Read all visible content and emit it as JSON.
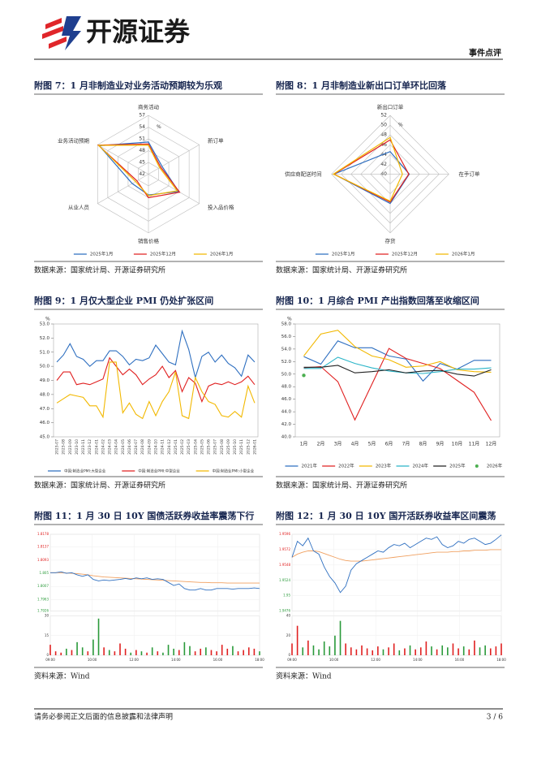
{
  "header": {
    "brand": "开源证券",
    "tag": "事件点评"
  },
  "figures": [
    {
      "title": "附图 7：1 月非制造业对业务活动预期较为乐观",
      "source": "数据来源：国家统计局、开源证券研究所",
      "chart_data": {
        "type": "radar",
        "unit": "%",
        "categories": [
          "商务活动",
          "新订单",
          "投入品价格",
          "销售价格",
          "从业人员",
          "业务活动预期"
        ],
        "rlim": [
          42,
          57
        ],
        "rticks": [
          42,
          45,
          48,
          51,
          54,
          57
        ],
        "series": [
          {
            "name": "2025年1月",
            "color": "#2e6fc0",
            "values": [
              50.2,
              46.0,
              50.9,
              47.3,
              46.8,
              56.5
            ]
          },
          {
            "name": "2025年12月",
            "color": "#e02020",
            "values": [
              49.7,
              45.6,
              51.2,
              48.0,
              45.4,
              56.8
            ]
          },
          {
            "name": "2026年1月",
            "color": "#f2b800",
            "values": [
              49.4,
              45.3,
              50.5,
              47.5,
              45.8,
              56.7
            ]
          }
        ]
      }
    },
    {
      "title": "附图 8：1 月非制造业新出口订单环比回落",
      "source": "数据来源：国家统计局、开源证券研究所",
      "chart_data": {
        "type": "radar",
        "unit": "%",
        "categories": [
          "新出口订单",
          "在手订单",
          "存货",
          "供应商配送时间"
        ],
        "rlim": [
          40,
          52
        ],
        "rticks": [
          40,
          42,
          44,
          46,
          48,
          50,
          52
        ],
        "series": [
          {
            "name": "2025年1月",
            "color": "#2e6fc0",
            "values": [
              44.6,
              43.9,
              46.0,
              51.5
            ]
          },
          {
            "name": "2025年12月",
            "color": "#e02020",
            "values": [
              47.0,
              43.8,
              45.7,
              51.5
            ]
          },
          {
            "name": "2026年1月",
            "color": "#f2b800",
            "values": [
              47.5,
              42.5,
              45.5,
              51.6
            ]
          }
        ]
      }
    },
    {
      "title": "附图 9：1 月仅大型企业 PMI 仍处扩张区间",
      "source": "数据来源：国家统计局、开源证券研究所",
      "chart_data": {
        "type": "line",
        "unit": "%",
        "categories": [
          "2023-07",
          "2023-08",
          "2023-09",
          "2023-10",
          "2023-11",
          "2023-12",
          "2024-01",
          "2024-02",
          "2024-03",
          "2024-04",
          "2024-05",
          "2024-06",
          "2024-07",
          "2024-08",
          "2024-09",
          "2024-10",
          "2024-11",
          "2024-12",
          "2025-01",
          "2025-02",
          "2025-03",
          "2025-04",
          "2025-05",
          "2025-06",
          "2025-07",
          "2025-08",
          "2025-09",
          "2025-10",
          "2025-11",
          "2025-12",
          "2026-01"
        ],
        "ylim": [
          45,
          53
        ],
        "yticks": [
          {
            "value": 45,
            "label": "45.0"
          },
          {
            "value": 46,
            "label": "46.0"
          },
          {
            "value": 47,
            "label": "47.0"
          },
          {
            "value": 48,
            "label": "48.0"
          },
          {
            "value": 49,
            "label": "49.0"
          },
          {
            "value": 50,
            "label": "50.0"
          },
          {
            "value": 51,
            "label": "51.0"
          },
          {
            "value": 52,
            "label": "52.0"
          },
          {
            "value": 53,
            "label": "53.0"
          }
        ],
        "series": [
          {
            "name": "中国:制造业PMI:大型企业",
            "color": "#2e6fc0",
            "values": [
              50.3,
              50.8,
              51.6,
              50.7,
              50.5,
              50.0,
              50.4,
              50.4,
              51.1,
              51.1,
              50.7,
              50.1,
              50.5,
              50.4,
              50.6,
              51.5,
              50.9,
              50.3,
              50.1,
              52.5,
              51.2,
              49.2,
              50.7,
              51.0,
              50.3,
              50.8,
              50.2,
              49.9,
              49.3,
              50.8,
              50.3
            ]
          },
          {
            "name": "中国:制造业PMI:中型企业",
            "color": "#e02020",
            "values": [
              49.0,
              49.6,
              49.6,
              48.7,
              48.8,
              48.7,
              48.9,
              49.1,
              50.6,
              50.0,
              49.4,
              49.8,
              49.4,
              48.7,
              49.1,
              49.4,
              50.0,
              49.2,
              49.7,
              48.2,
              49.2,
              48.8,
              47.5,
              48.6,
              48.8,
              48.7,
              48.9,
              48.7,
              48.9,
              49.3,
              48.7
            ]
          },
          {
            "name": "中国:制造业PMI:小型企业",
            "color": "#f2b800",
            "values": [
              47.4,
              47.7,
              48.0,
              47.9,
              47.8,
              47.2,
              47.2,
              46.4,
              50.3,
              50.3,
              46.7,
              47.4,
              46.6,
              46.3,
              47.5,
              46.5,
              47.5,
              48.2,
              49.6,
              46.5,
              46.3,
              49.2,
              48.2,
              47.5,
              47.3,
              46.5,
              46.4,
              46.8,
              46.4,
              48.6,
              47.4
            ]
          }
        ]
      }
    },
    {
      "title": "附图 10：1 月综合 PMI 产出指数回落至收缩区间",
      "source": "数据来源：国家统计局、开源证券研究所",
      "chart_data": {
        "type": "line",
        "unit": "%",
        "categories": [
          "1月",
          "2月",
          "3月",
          "4月",
          "5月",
          "6月",
          "7月",
          "8月",
          "9月",
          "10月",
          "11月",
          "12月"
        ],
        "ylim": [
          40,
          58
        ],
        "yticks": [
          {
            "value": 40,
            "label": "40.0"
          },
          {
            "value": 42,
            "label": "42.0"
          },
          {
            "value": 44,
            "label": "44.0"
          },
          {
            "value": 46,
            "label": "46.0"
          },
          {
            "value": 48,
            "label": "48.0"
          },
          {
            "value": 50,
            "label": "50.0"
          },
          {
            "value": 52,
            "label": "52.0"
          },
          {
            "value": 54,
            "label": "54.0"
          },
          {
            "value": 56,
            "label": "56.0"
          },
          {
            "value": 58,
            "label": "58.0"
          }
        ],
        "series": [
          {
            "name": "2021年",
            "color": "#2e6fc0",
            "values": [
              52.8,
              51.6,
              55.3,
              54.2,
              54.2,
              52.9,
              52.4,
              48.9,
              51.7,
              50.8,
              52.2,
              52.2
            ]
          },
          {
            "name": "2022年",
            "color": "#e02020",
            "values": [
              51.0,
              51.2,
              48.8,
              42.7,
              48.4,
              54.1,
              52.5,
              51.7,
              50.9,
              49.0,
              47.1,
              42.6
            ]
          },
          {
            "name": "2023年",
            "color": "#f2b800",
            "values": [
              52.9,
              56.4,
              57.0,
              54.4,
              52.9,
              52.3,
              51.1,
              51.3,
              52.0,
              50.7,
              50.4,
              50.3
            ]
          },
          {
            "name": "2024年",
            "color": "#2bb5c8",
            "values": [
              50.9,
              50.9,
              52.7,
              51.7,
              51.0,
              50.5,
              50.2,
              50.1,
              50.4,
              50.8,
              50.8,
              51.0
            ]
          },
          {
            "name": "2025年",
            "color": "#222222",
            "values": [
              51.1,
              51.1,
              51.4,
              50.2,
              50.4,
              50.7,
              50.2,
              50.5,
              50.6,
              50.0,
              49.7,
              50.7
            ]
          },
          {
            "name": "2026年",
            "color": "#4caf50",
            "values": [
              49.8,
              null,
              null,
              null,
              null,
              null,
              null,
              null,
              null,
              null,
              null,
              null
            ]
          }
        ]
      }
    },
    {
      "title": "附图 11：1 月 30 日 10Y 国债活跃券收益率震荡下行",
      "source": "资料来源：Wind",
      "chart_data": {
        "type": "intraday",
        "xtick_labels": [
          "09:00",
          "10:00",
          "12:00",
          "14:00",
          "16:00",
          "18:00"
        ],
        "ylim": [
          1.7926,
          1.8178
        ],
        "yticks": [
          1.7926,
          1.7963,
          1.8007,
          1.805,
          1.8093,
          1.8137,
          1.8178
        ],
        "price": {
          "color": "#2e6fc0",
          "values": [
            1.8052,
            1.8052,
            1.8055,
            1.805,
            1.8052,
            1.8045,
            1.804,
            1.8045,
            1.803,
            1.8025,
            1.8028,
            1.8026,
            1.8028,
            1.803,
            1.8033,
            1.803,
            1.8035,
            1.8032,
            1.8035,
            1.803,
            1.8032,
            1.803,
            1.802,
            1.801,
            1.8015,
            1.8,
            1.7995,
            1.7995,
            1.8,
            1.7995,
            1.7995,
            1.8,
            1.8,
            1.8,
            1.7998,
            1.8,
            1.8,
            1.8,
            1.8002,
            1.8
          ]
        },
        "average": {
          "color": "#f0a060",
          "values": [
            1.8052,
            1.8052,
            1.8052,
            1.8051,
            1.805,
            1.8049,
            1.8047,
            1.8045,
            1.8042,
            1.804,
            1.8038,
            1.8037,
            1.8036,
            1.8035,
            1.8034,
            1.8033,
            1.8032,
            1.8031,
            1.803,
            1.8029,
            1.8028,
            1.8027,
            1.8026,
            1.8025,
            1.8024,
            1.8023,
            1.8022,
            1.8021,
            1.802,
            1.802,
            1.8019,
            1.8019,
            1.8019,
            1.8018,
            1.8018,
            1.8018,
            1.8018,
            1.8018,
            1.8018,
            1.8018
          ]
        },
        "volume_lim": [
          0,
          30
        ],
        "volume_ticks": [
          0,
          15,
          30
        ],
        "volume": [
          8,
          3,
          2,
          5,
          4,
          10,
          6,
          3,
          12,
          28,
          6,
          4,
          3,
          9,
          5,
          2,
          4,
          3,
          2,
          6,
          3,
          2,
          8,
          5,
          4,
          10,
          7,
          3,
          5,
          6,
          4,
          3,
          8,
          5,
          7,
          3,
          4,
          6,
          5,
          3
        ],
        "up_color": "#e02020",
        "down_color": "#2a9a3a"
      }
    },
    {
      "title": "附图 12：1 月 30 日 10Y 国开活跃券收益率区间震荡",
      "source": "资料来源：Wind",
      "chart_data": {
        "type": "intraday",
        "xtick_labels": [
          "09:00",
          "10:00",
          "12:00",
          "14:00",
          "16:00",
          "18:00"
        ],
        "ylim": [
          1.9476,
          1.9596
        ],
        "yticks": [
          1.9476,
          1.95,
          1.9524,
          1.9548,
          1.9572,
          1.9596
        ],
        "price": {
          "color": "#2e6fc0",
          "values": [
            1.956,
            1.9585,
            1.9578,
            1.959,
            1.957,
            1.9565,
            1.9545,
            1.953,
            1.952,
            1.9505,
            1.9515,
            1.954,
            1.955,
            1.9555,
            1.956,
            1.9565,
            1.957,
            1.9568,
            1.9575,
            1.958,
            1.9578,
            1.9582,
            1.9575,
            1.958,
            1.9585,
            1.959,
            1.9588,
            1.9592,
            1.958,
            1.9575,
            1.9578,
            1.9585,
            1.9582,
            1.9588,
            1.959,
            1.9585,
            1.958,
            1.9582,
            1.9588,
            1.9595
          ]
        },
        "average": {
          "color": "#f0a060",
          "values": [
            1.956,
            1.9565,
            1.9568,
            1.957,
            1.957,
            1.9569,
            1.9566,
            1.9563,
            1.956,
            1.9557,
            1.9555,
            1.9554,
            1.9554,
            1.9554,
            1.9555,
            1.9556,
            1.9557,
            1.9558,
            1.9559,
            1.956,
            1.9561,
            1.9562,
            1.9563,
            1.9564,
            1.9565,
            1.9566,
            1.9567,
            1.9568,
            1.9568,
            1.9568,
            1.9569,
            1.9569,
            1.957,
            1.957,
            1.9571,
            1.9571,
            1.9571,
            1.9572,
            1.9572,
            1.9572
          ]
        },
        "volume_lim": [
          0,
          40
        ],
        "volume_ticks": [
          0,
          20,
          40
        ],
        "volume": [
          12,
          30,
          8,
          15,
          10,
          6,
          14,
          9,
          20,
          35,
          12,
          8,
          6,
          10,
          7,
          5,
          9,
          6,
          8,
          12,
          5,
          7,
          10,
          6,
          8,
          14,
          9,
          6,
          10,
          8,
          12,
          7,
          9,
          6,
          15,
          8,
          10,
          7,
          9,
          12
        ],
        "up_color": "#e02020",
        "down_color": "#2a9a3a"
      }
    }
  ],
  "footer": {
    "disclaimer": "请务必参阅正文后面的信息披露和法律声明",
    "page": "3 / 6"
  }
}
